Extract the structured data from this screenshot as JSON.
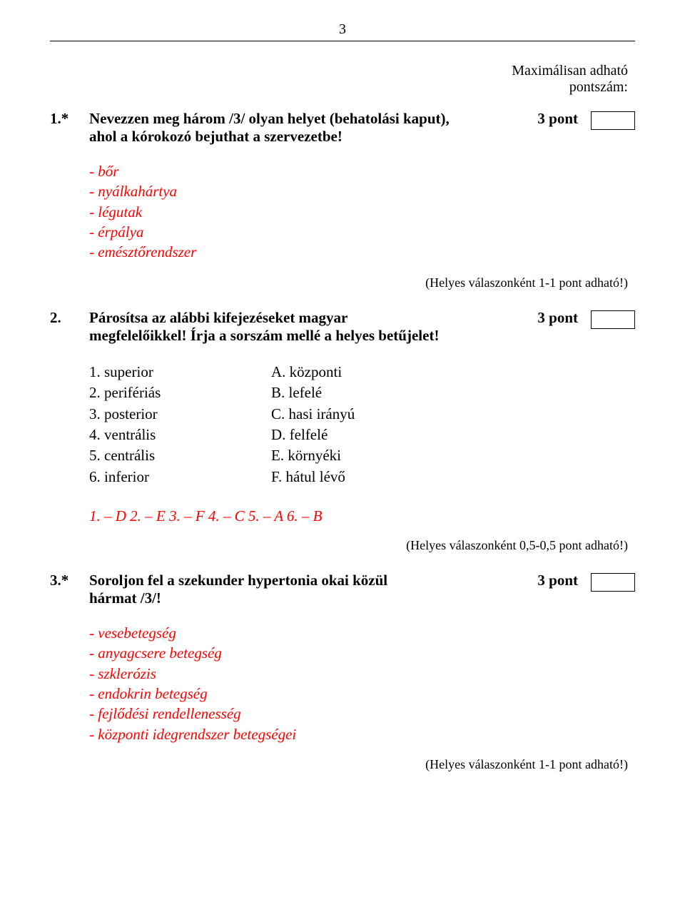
{
  "pageNumber": "3",
  "header": {
    "line1": "Maximálisan adható",
    "line2": "pontszám:"
  },
  "q1": {
    "num": "1.*",
    "textLine1": "Nevezzen meg három /3/ olyan helyet (behatolási kaput),",
    "textLine2": "ahol a kórokozó bejuthat a szervezetbe!",
    "points": "3 pont",
    "answers": [
      "- bőr",
      "- nyálkahártya",
      "- légutak",
      "- érpálya",
      "- emésztőrendszer"
    ],
    "scoringNote": "(Helyes válaszonként 1-1 pont adható!)"
  },
  "q2": {
    "num": "2.",
    "textLine1": "Párosítsa az alábbi kifejezéseket magyar",
    "textLine2": "megfelelőikkel! Írja a sorszám mellé a helyes betűjelet!",
    "points": "3 pont",
    "pairs": [
      {
        "left": "1. superior",
        "right": "A. központi"
      },
      {
        "left": "2. perifériás",
        "right": "B. lefelé"
      },
      {
        "left": "3. posterior",
        "right": "C. hasi irányú"
      },
      {
        "left": "4. ventrális",
        "right": "D. felfelé"
      },
      {
        "left": "5. centrális",
        "right": "E. környéki"
      },
      {
        "left": "6. inferior",
        "right": "F. hátul lévő"
      }
    ],
    "answerKey": "1. – D  2. – E  3. – F  4. – C  5. – A  6. – B",
    "scoringNote": "(Helyes válaszonként 0,5-0,5 pont adható!)"
  },
  "q3": {
    "num": "3.*",
    "textLine1": "Soroljon fel a szekunder hypertonia okai közül",
    "textLine2": "hármat /3/!",
    "points": "3 pont",
    "answers": [
      "- vesebetegség",
      "- anyagcsere betegség",
      "- szklerózis",
      "- endokrin betegség",
      "- fejlődési rendellenesség",
      "- központi idegrendszer betegségei"
    ],
    "scoringNote": "(Helyes válaszonként 1-1 pont adható!)"
  }
}
